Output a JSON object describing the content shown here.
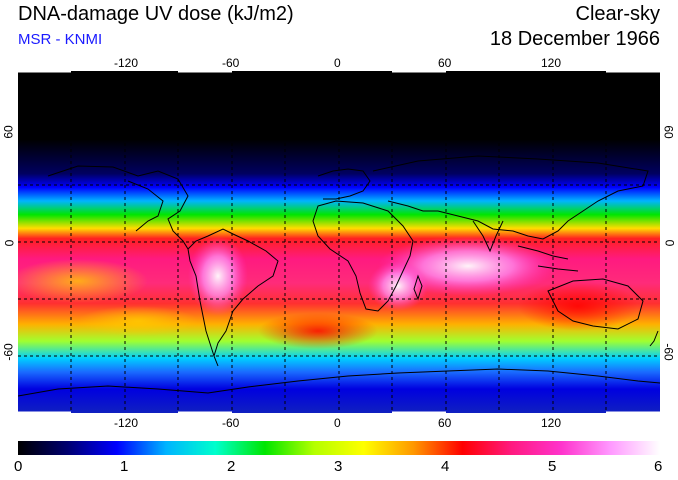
{
  "header": {
    "title": "DNA-damage UV dose (kJ/m2)",
    "subtitle": "MSR - KNMI",
    "condition": "Clear-sky",
    "date": "18 December 1966"
  },
  "map": {
    "lon_ticks": [
      "-120",
      "-60",
      "0",
      "60",
      "120"
    ],
    "lat_ticks_left": [
      "60",
      "0",
      "-60"
    ],
    "lat_ticks_right": [
      "60",
      "0",
      "-60"
    ]
  },
  "colorbar": {
    "labels": [
      "0",
      "1",
      "2",
      "3",
      "4",
      "5",
      "6"
    ],
    "min": 0,
    "max": 6
  },
  "colors": {
    "subtitle": "#1a1aff",
    "scale": [
      "#000000",
      "#000070",
      "#0000ff",
      "#00b4ff",
      "#00ffcc",
      "#00e600",
      "#b4ff00",
      "#ffff00",
      "#ff9900",
      "#ff0000",
      "#ff1a80",
      "#ff33cc",
      "#ff99ff",
      "#ffffff"
    ]
  }
}
